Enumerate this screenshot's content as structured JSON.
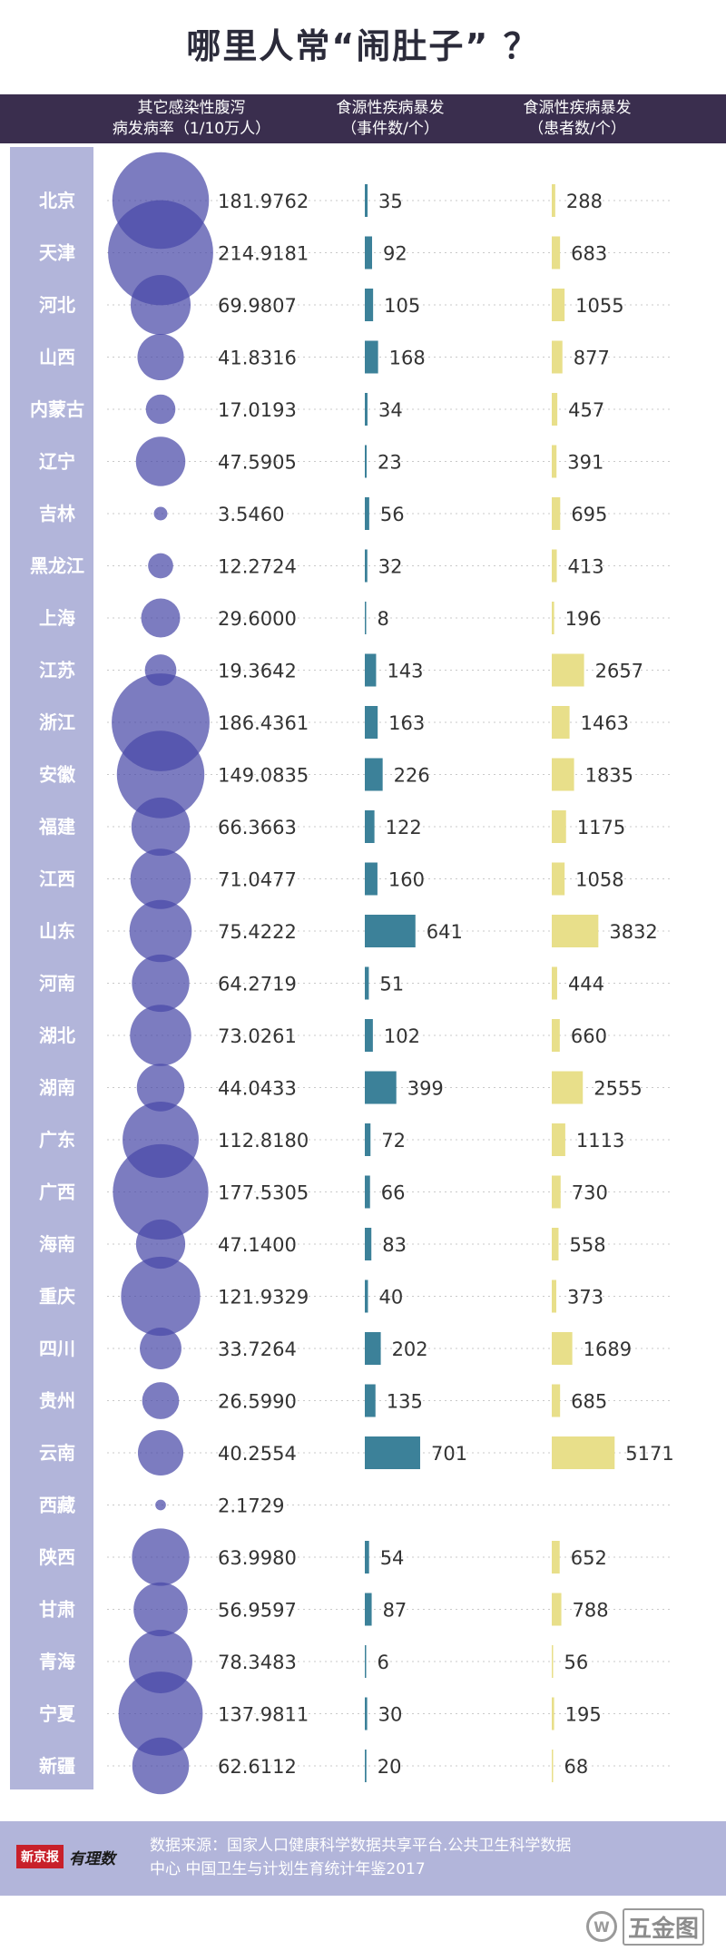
{
  "title": "哪里人常“闹肚子” ？",
  "headers": {
    "col1_line1": "其它感染性腹泻",
    "col1_line2": "病发病率（1/10万人）",
    "col2_line1": "食源性疾病暴发",
    "col2_line2": "（事件数/个）",
    "col3_line1": "食源性疾病暴发",
    "col3_line2": "（患者数/个）"
  },
  "colors": {
    "header_bg": "#3a2e4e",
    "sidebar_bg": "#b2b5da",
    "bubble": "#4a4aa8",
    "event_bar": "#3c8199",
    "patient_bar": "#e8df8a",
    "province_text": "#ffffff"
  },
  "chart_data": {
    "type": "bubble_and_bar_table",
    "categories": [
      "北京",
      "天津",
      "河北",
      "山西",
      "内蒙古",
      "辽宁",
      "吉林",
      "黑龙江",
      "上海",
      "江苏",
      "浙江",
      "安徽",
      "福建",
      "江西",
      "山东",
      "河南",
      "湖北",
      "湖南",
      "广东",
      "广西",
      "海南",
      "重庆",
      "四川",
      "贵州",
      "云南",
      "西藏",
      "陕西",
      "甘肃",
      "青海",
      "宁夏",
      "新疆"
    ],
    "series": [
      {
        "name": "其它感染性腹泻病发病率（1/10万人）",
        "mark": "bubble",
        "values": [
          "181.9762",
          "214.9181",
          "69.9807",
          "41.8316",
          "17.0193",
          "47.5905",
          "3.5460",
          "12.2724",
          "29.6000",
          "19.3642",
          "186.4361",
          "149.0835",
          "66.3663",
          "71.0477",
          "75.4222",
          "64.2719",
          "73.0261",
          "44.0433",
          "112.8180",
          "177.5305",
          "47.1400",
          "121.9329",
          "33.7264",
          "26.5990",
          "40.2554",
          "2.1729",
          "63.9980",
          "56.9597",
          "78.3483",
          "137.9811",
          "62.6112"
        ]
      },
      {
        "name": "食源性疾病暴发（事件数/个）",
        "mark": "bar",
        "values": [
          35,
          92,
          105,
          168,
          34,
          23,
          56,
          32,
          8,
          143,
          163,
          226,
          122,
          160,
          641,
          51,
          102,
          399,
          72,
          66,
          83,
          40,
          202,
          135,
          701,
          null,
          54,
          87,
          6,
          30,
          20
        ]
      },
      {
        "name": "食源性疾病暴发（患者数/个）",
        "mark": "bar",
        "values": [
          288,
          683,
          1055,
          877,
          457,
          391,
          695,
          413,
          196,
          2657,
          1463,
          1835,
          1175,
          1058,
          3832,
          444,
          660,
          2555,
          1113,
          730,
          558,
          373,
          1689,
          685,
          5171,
          null,
          652,
          788,
          56,
          195,
          68
        ]
      }
    ]
  },
  "footer": {
    "logo_box": "新京报",
    "logo_text": "有理数",
    "source_line1": "数据来源：国家人口健康科学数据共享平台.公共卫生科学数据",
    "source_line2": "中心 中国卫生与计划生育统计年鉴2017"
  },
  "watermark": {
    "icon_letter": "W",
    "text": "五金图"
  }
}
